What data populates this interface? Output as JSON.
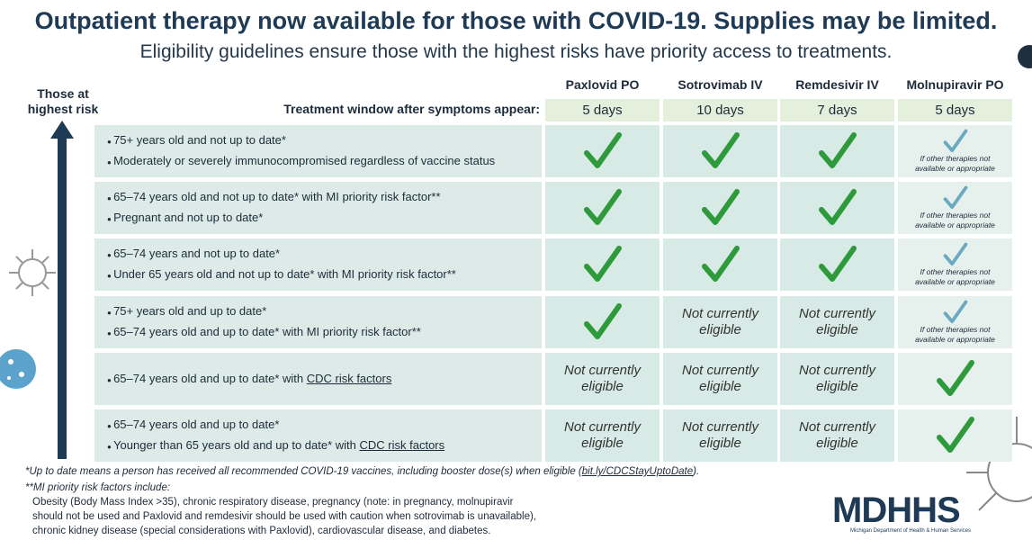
{
  "header": {
    "title": "Outpatient therapy now available for those with COVID-19. Supplies may be limited.",
    "subtitle": "Eligibility guidelines ensure those with the highest risks have priority access to treatments."
  },
  "side_label": {
    "line1": "Those at",
    "line2": "highest risk"
  },
  "table": {
    "window_label": "Treatment window after symptoms appear:",
    "columns": [
      {
        "name": "Paxlovid PO",
        "window": "5 days"
      },
      {
        "name": "Sotrovimab IV",
        "window": "10 days"
      },
      {
        "name": "Remdesivir IV",
        "window": "7 days"
      },
      {
        "name": "Molnupiravir PO",
        "window": "5 days"
      }
    ],
    "rows": [
      {
        "criteria": [
          {
            "text": "75+ years old and not up to date*"
          },
          {
            "text": "Moderately or severely immunocompromised regardless of vaccine status"
          }
        ],
        "cells": [
          {
            "check": "#2e9a3c"
          },
          {
            "check": "#2e9a3c"
          },
          {
            "check": "#2e9a3c"
          },
          {
            "check": "#6aa9bf",
            "note": "If other therapies not available or appropriate"
          }
        ]
      },
      {
        "criteria": [
          {
            "text": "65–74 years old and not up to date* with MI priority risk factor**"
          },
          {
            "text": "Pregnant and not up to date*"
          }
        ],
        "cells": [
          {
            "check": "#2e9a3c"
          },
          {
            "check": "#2e9a3c"
          },
          {
            "check": "#2e9a3c"
          },
          {
            "check": "#6aa9bf",
            "note": "If other therapies not available or appropriate"
          }
        ]
      },
      {
        "criteria": [
          {
            "text": "65–74 years and not up to date*"
          },
          {
            "text": "Under 65 years old and not up to date* with MI priority risk factor**"
          }
        ],
        "cells": [
          {
            "check": "#2e9a3c"
          },
          {
            "check": "#2e9a3c"
          },
          {
            "check": "#2e9a3c"
          },
          {
            "check": "#6aa9bf",
            "note": "If other therapies not available or appropriate"
          }
        ]
      },
      {
        "criteria": [
          {
            "text": "75+ years old and up to date*"
          },
          {
            "text": "65–74 years old and up to date* with MI priority risk factor**"
          }
        ],
        "cells": [
          {
            "check": "#2e9a3c"
          },
          {
            "text": "Not currently eligible"
          },
          {
            "text": "Not currently eligible"
          },
          {
            "check": "#6aa9bf",
            "note": "If other therapies not available or appropriate"
          }
        ]
      },
      {
        "criteria": [
          {
            "text": "65–74 years old and up to date* with ",
            "link": "CDC risk factors"
          }
        ],
        "cells": [
          {
            "text": "Not currently eligible"
          },
          {
            "text": "Not currently eligible"
          },
          {
            "text": "Not currently eligible"
          },
          {
            "check": "#2e9a3c"
          }
        ]
      },
      {
        "criteria": [
          {
            "text": "65–74 years old and up to date*"
          },
          {
            "text": "Younger than 65 years old and up to date* with ",
            "link": "CDC risk factors"
          }
        ],
        "cells": [
          {
            "text": "Not currently eligible"
          },
          {
            "text": "Not currently eligible"
          },
          {
            "text": "Not currently eligible"
          },
          {
            "check": "#2e9a3c"
          }
        ]
      }
    ]
  },
  "footnotes": {
    "note1": {
      "text": "*Up to date means a person has received all recommended COVID-19 vaccines, including booster dose(s) when eligible (",
      "link": "bit.ly/CDCStayUptoDate",
      "tail": ")."
    },
    "note2": {
      "heading": "**MI priority risk factors include:",
      "lines": [
        "Obesity (Body Mass Index >35), chronic respiratory disease, pregnancy (note: in pregnancy, molnupiravir",
        "should not be used and Paxlovid and remdesivir should be used with caution when sotrovimab is unavailable),",
        "chronic kidney disease (special considerations with Paxlovid), cardiovascular disease, and diabetes."
      ]
    }
  },
  "logo": {
    "name": "MDHHS",
    "caption": "Michigan Department of Health & Human Services"
  }
}
